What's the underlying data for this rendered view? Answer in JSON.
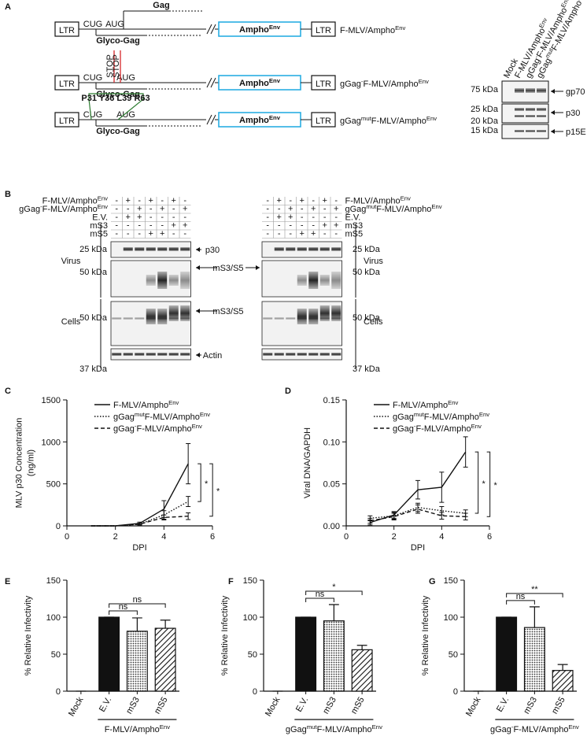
{
  "panel_labels": [
    "A",
    "B",
    "C",
    "D",
    "E",
    "F",
    "G"
  ],
  "panel_a": {
    "constructs": [
      {
        "ltr": [
          "LTR",
          "LTR"
        ],
        "cug": "CUG",
        "aug": "AUG",
        "glyco": "Glyco-Gag",
        "env": [
          "Ampho",
          {
            "sup": "Env"
          }
        ],
        "name": [
          "F-MLV/Ampho",
          {
            "sup": "Env"
          }
        ]
      },
      {
        "ltr": [
          "LTR",
          "LTR"
        ],
        "cug": "CUG",
        "aug": "AUG",
        "glyco": "Glyco-Gag",
        "env": [
          "Ampho",
          {
            "sup": "Env"
          }
        ],
        "name": [
          "gGag",
          {
            "sup": "-"
          },
          "F-MLV/Ampho",
          {
            "sup": "Env"
          }
        ]
      },
      {
        "ltr": [
          "LTR",
          "LTR"
        ],
        "cug": "CUG",
        "aug": "AUG",
        "glyco": "Glyco-Gag",
        "env": [
          "Ampho",
          {
            "sup": "Env"
          }
        ],
        "name": [
          "gGag",
          {
            "sup": "mut"
          },
          "F-MLV/Ampho",
          {
            "sup": "Env"
          }
        ]
      }
    ],
    "gag": "Gag",
    "stop": [
      "STOP",
      "STOP"
    ],
    "mutations": "P31 Y36 L39 R63",
    "blot": {
      "lanes": [
        [
          "Mock"
        ],
        [
          "F-MLV/Ampho",
          {
            "sup": "Env"
          }
        ],
        [
          "gGag",
          {
            "sup": "-"
          },
          "F-MLV/Ampho",
          {
            "sup": "Env"
          }
        ],
        [
          "gGag",
          {
            "sup": "mut"
          },
          "F-MLV/Ampho",
          {
            "sup": "Env"
          }
        ]
      ],
      "markers": [
        "75 kDa",
        "25 kDa",
        "20 kDa",
        "15 kDa"
      ],
      "bands": [
        "gp70",
        "p30",
        "p15E"
      ]
    }
  },
  "panel_b": {
    "tables": [
      {
        "rows": [
          {
            "label": [
              "F-MLV/Ampho",
              {
                "sup": "Env"
              }
            ],
            "cells": [
              "-",
              "+",
              "-",
              "+",
              "-",
              "+",
              "-"
            ]
          },
          {
            "label": [
              "gGag",
              {
                "sup": "-"
              },
              "F-MLV/Ampho",
              {
                "sup": "Env"
              }
            ],
            "cells": [
              "-",
              "-",
              "+",
              "-",
              "+",
              "-",
              "+"
            ]
          },
          {
            "label": [
              "E.V."
            ],
            "cells": [
              "-",
              "+",
              "+",
              "-",
              "-",
              "-",
              "-"
            ]
          },
          {
            "label": [
              "mS3"
            ],
            "cells": [
              "-",
              "-",
              "-",
              "-",
              "-",
              "+",
              "+"
            ]
          },
          {
            "label": [
              "mS5"
            ],
            "cells": [
              "-",
              "-",
              "-",
              "+",
              "+",
              "-",
              "-"
            ]
          }
        ]
      },
      {
        "rows": [
          {
            "label": [
              "F-MLV/Ampho",
              {
                "sup": "Env"
              }
            ],
            "cells": [
              "-",
              "+",
              "-",
              "+",
              "-",
              "+",
              "-"
            ]
          },
          {
            "label": [
              "gGag",
              {
                "sup": "mut"
              },
              "F-MLV/Ampho",
              {
                "sup": "Env"
              }
            ],
            "cells": [
              "-",
              "-",
              "+",
              "-",
              "+",
              "-",
              "+"
            ]
          },
          {
            "label": [
              "E.V."
            ],
            "cells": [
              "-",
              "+",
              "+",
              "-",
              "-",
              "-",
              "-"
            ]
          },
          {
            "label": [
              "mS3"
            ],
            "cells": [
              "-",
              "-",
              "-",
              "-",
              "-",
              "+",
              "+"
            ]
          },
          {
            "label": [
              "mS5"
            ],
            "cells": [
              "-",
              "-",
              "-",
              "+",
              "+",
              "-",
              "-"
            ]
          }
        ]
      }
    ],
    "bands": [
      "p30",
      "mS3/S5",
      "mS3/S5",
      "Actin"
    ],
    "markers_left": [
      "25 kDa",
      "50 kDa",
      "50 kDa",
      "37 kDa"
    ],
    "markers_right": [
      "25 kDa",
      "50 kDa",
      "50 kDa",
      "37 kDa"
    ],
    "sections_left": [
      "Virus",
      "Cells"
    ],
    "sections_right": [
      "Virus",
      "Cells"
    ]
  },
  "chart_data": [
    {
      "type": "line",
      "ylabel": [
        "MLV p30 Concentration",
        "(ng/ml)"
      ],
      "xlabel": "DPI",
      "x": [
        1,
        2,
        3,
        4,
        5
      ],
      "xlim": [
        0,
        6
      ],
      "xticks": [
        0,
        2,
        4,
        6
      ],
      "ylim": [
        0,
        1500
      ],
      "yticks": [
        0,
        500,
        1000,
        1500
      ],
      "series": [
        {
          "name": [
            "F-MLV/Ampho",
            {
              "sup": "Env"
            }
          ],
          "dash": "solid",
          "color": "#111111",
          "values": [
            0,
            0,
            30,
            200,
            740
          ],
          "errors": [
            0,
            0,
            15,
            100,
            240
          ]
        },
        {
          "name": [
            "gGag",
            {
              "sup": "mut"
            },
            "F-MLV/Ampho",
            {
              "sup": "Env"
            }
          ],
          "dash": "dotted",
          "color": "#111111",
          "values": [
            0,
            0,
            20,
            130,
            290
          ],
          "errors": [
            0,
            0,
            10,
            50,
            60
          ]
        },
        {
          "name": [
            "gGag",
            {
              "sup": "-"
            },
            "F-MLV/Ampho",
            {
              "sup": "Env"
            }
          ],
          "dash": "dashed",
          "color": "#111111",
          "values": [
            0,
            0,
            20,
            100,
            115
          ],
          "errors": [
            0,
            0,
            10,
            30,
            40
          ]
        }
      ],
      "significance": [
        {
          "between": [
            0,
            1
          ],
          "label": "*"
        },
        {
          "between": [
            0,
            2
          ],
          "label": "*"
        }
      ]
    },
    {
      "type": "line",
      "ylabel": [
        "Viral DNA/GAPDH"
      ],
      "xlabel": "DPI",
      "x": [
        1,
        2,
        3,
        4,
        5
      ],
      "xlim": [
        0,
        6
      ],
      "xticks": [
        0,
        2,
        4,
        6
      ],
      "ylim": [
        0,
        0.15
      ],
      "yticks": [
        {
          "value": 0,
          "label": "0.00"
        },
        0.05,
        {
          "value": 0.1,
          "label": "0.10"
        },
        0.15
      ],
      "series": [
        {
          "name": [
            "F-MLV/Ampho",
            {
              "sup": "Env"
            }
          ],
          "dash": "solid",
          "color": "#111111",
          "values": [
            0.004,
            0.013,
            0.043,
            0.046,
            0.088
          ],
          "errors": [
            0.003,
            0.004,
            0.011,
            0.018,
            0.018
          ]
        },
        {
          "name": [
            "gGag",
            {
              "sup": "mut"
            },
            "F-MLV/Ampho",
            {
              "sup": "Env"
            }
          ],
          "dash": "dotted",
          "color": "#111111",
          "values": [
            0.009,
            0.012,
            0.022,
            0.018,
            0.015
          ],
          "errors": [
            0.003,
            0.004,
            0.005,
            0.005,
            0.004
          ]
        },
        {
          "name": [
            "gGag",
            {
              "sup": "-"
            },
            "F-MLV/Ampho",
            {
              "sup": "Env"
            }
          ],
          "dash": "dashed",
          "color": "#111111",
          "values": [
            0.006,
            0.011,
            0.02,
            0.012,
            0.011
          ],
          "errors": [
            0.003,
            0.004,
            0.005,
            0.004,
            0.004
          ]
        }
      ],
      "significance": [
        {
          "between": [
            0,
            1
          ],
          "label": "*"
        },
        {
          "between": [
            0,
            2
          ],
          "label": "*"
        }
      ]
    },
    {
      "type": "bar",
      "ylabel": [
        "% Relative Infectivity"
      ],
      "categories": [
        "Mock",
        "E.V.",
        "mS3",
        "mS5"
      ],
      "values": [
        0,
        100,
        81,
        85
      ],
      "errors": [
        0,
        0,
        18,
        11
      ],
      "fills": [
        "solid",
        "solid",
        "dots",
        "hatch"
      ],
      "color": "#111111",
      "ylim": [
        0,
        150
      ],
      "yticks": [
        0,
        50,
        100,
        150
      ],
      "group_label": [
        "F-MLV/Ampho",
        {
          "sup": "Env"
        }
      ],
      "significance": [
        {
          "between": [
            1,
            2
          ],
          "label": "ns"
        },
        {
          "between": [
            1,
            3
          ],
          "label": "ns"
        }
      ]
    },
    {
      "type": "bar",
      "ylabel": [
        "% Relative Infectivity"
      ],
      "categories": [
        "Mock",
        "E.V.",
        "mS3",
        "mS5"
      ],
      "values": [
        0,
        100,
        95,
        56
      ],
      "errors": [
        0,
        0,
        22,
        6
      ],
      "fills": [
        "solid",
        "solid",
        "dots",
        "hatch"
      ],
      "color": "#111111",
      "ylim": [
        0,
        150
      ],
      "yticks": [
        0,
        50,
        100,
        150
      ],
      "group_label": [
        "gGag",
        {
          "sup": "mut"
        },
        "F-MLV/Ampho",
        {
          "sup": "Env"
        }
      ],
      "significance": [
        {
          "between": [
            1,
            2
          ],
          "label": "ns"
        },
        {
          "between": [
            1,
            3
          ],
          "label": "*"
        }
      ]
    },
    {
      "type": "bar",
      "ylabel": [
        "% Relative Infectivity"
      ],
      "categories": [
        "Mock",
        "E.V.",
        "mS3",
        "mS5"
      ],
      "values": [
        0,
        100,
        86,
        28
      ],
      "errors": [
        0,
        0,
        28,
        8
      ],
      "fills": [
        "solid",
        "solid",
        "dots",
        "hatch"
      ],
      "color": "#111111",
      "ylim": [
        0,
        150
      ],
      "yticks": [
        0,
        50,
        100,
        150
      ],
      "group_label": [
        "gGag",
        {
          "sup": "-"
        },
        "F-MLV/Ampho",
        {
          "sup": "Env"
        }
      ],
      "significance": [
        {
          "between": [
            1,
            2
          ],
          "label": "ns"
        },
        {
          "between": [
            1,
            3
          ],
          "label": "**"
        }
      ]
    }
  ]
}
